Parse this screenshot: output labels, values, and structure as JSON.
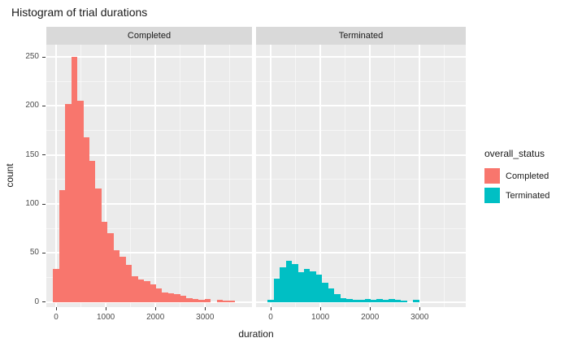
{
  "title": "Histogram of trial durations",
  "legend": {
    "title": "overall_status"
  },
  "colors": {
    "completed_fill": "#F8766D",
    "terminated_fill": "#00BFC4",
    "panel_background": "#EBEBEB",
    "strip_background": "#D9D9D9",
    "gridline": "#FFFFFF",
    "axis_text": "#4D4D4D",
    "tick_mark": "#333333"
  },
  "chart_data": {
    "type": "bar",
    "subtype": "histogram",
    "title": "Histogram of trial durations",
    "xlabel": "duration",
    "ylabel": "count",
    "faceted_by": "overall_status",
    "facets": [
      "Completed",
      "Terminated"
    ],
    "legend_position": "right",
    "grid": true,
    "x_ticks": [
      0,
      1000,
      2000,
      3000
    ],
    "y_ticks": [
      0,
      50,
      100,
      150,
      200,
      250
    ],
    "x_minor_gridlines": [
      500,
      1500,
      2500,
      3500
    ],
    "y_minor_gridlines": [
      25,
      75,
      125,
      175,
      225
    ],
    "xlim": [
      -250,
      3950
    ],
    "ylim": [
      -5,
      263
    ],
    "bin_width": 122,
    "bin_centers": [
      0,
      122,
      244,
      366,
      488,
      610,
      732,
      854,
      976,
      1098,
      1220,
      1342,
      1464,
      1586,
      1708,
      1830,
      1952,
      2074,
      2196,
      2318,
      2440,
      2562,
      2684,
      2806,
      2928,
      3050,
      3172,
      3294,
      3416,
      3538
    ],
    "series": [
      {
        "name": "Completed",
        "color": "#F8766D",
        "counts": [
          34,
          114,
          202,
          250,
          205,
          168,
          144,
          116,
          82,
          70,
          53,
          46,
          38,
          26,
          23,
          21,
          18,
          14,
          10,
          9,
          8,
          6,
          4,
          3,
          2,
          3,
          0,
          2,
          1,
          1
        ]
      },
      {
        "name": "Terminated",
        "color": "#00BFC4",
        "counts": [
          2,
          24,
          35,
          42,
          39,
          30,
          34,
          31,
          28,
          20,
          14,
          8,
          4,
          3,
          2,
          2,
          3,
          2,
          3,
          2,
          3,
          2,
          1,
          0,
          2,
          0,
          0,
          0,
          0,
          0
        ]
      }
    ]
  }
}
